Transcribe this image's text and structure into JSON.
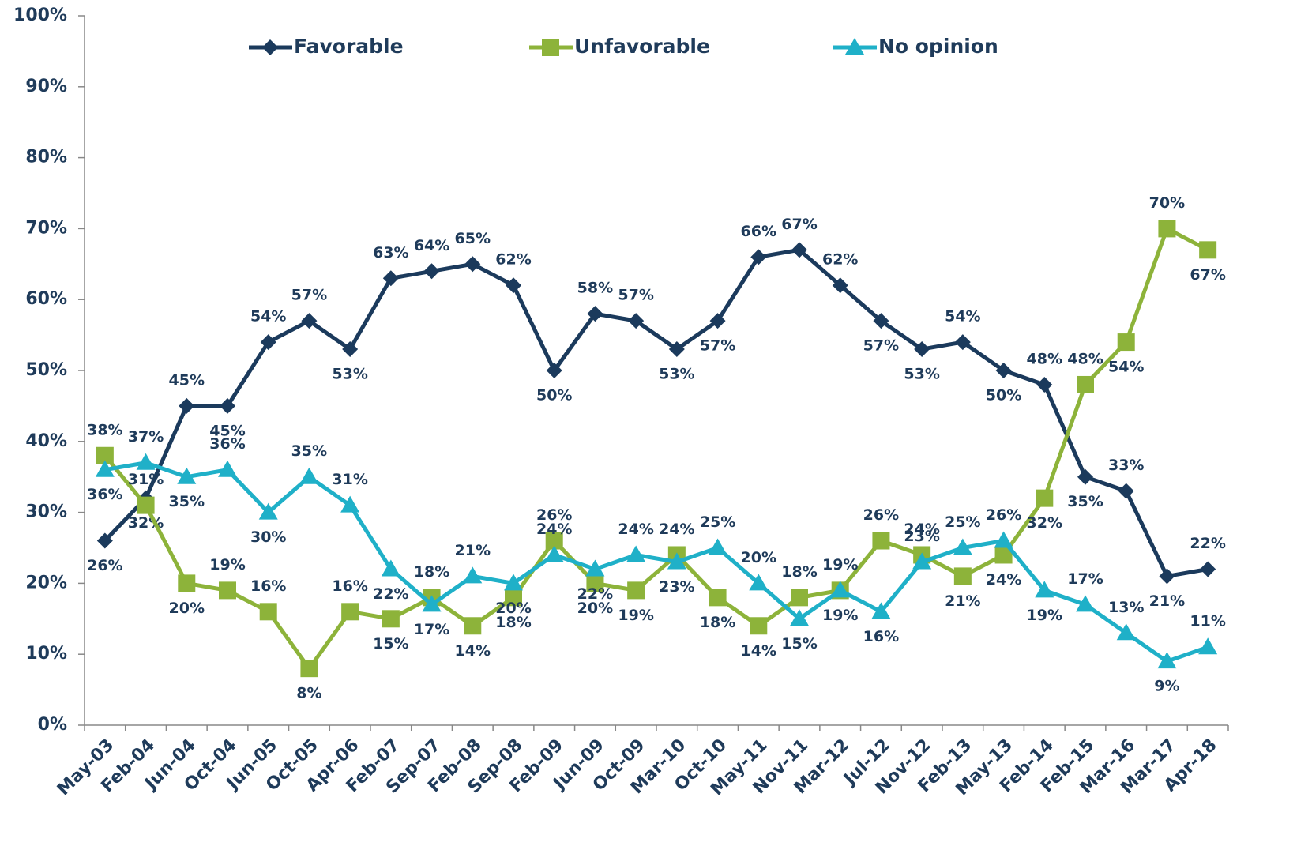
{
  "chart_data": {
    "type": "line",
    "categories": [
      "May-03",
      "Feb-04",
      "Jun-04",
      "Oct-04",
      "Jun-05",
      "Oct-05",
      "Apr-06",
      "Feb-07",
      "Sep-07",
      "Feb-08",
      "Sep-08",
      "Feb-09",
      "Jun-09",
      "Oct-09",
      "Mar-10",
      "Oct-10",
      "May-11",
      "Nov-11",
      "Mar-12",
      "Jul-12",
      "Nov-12",
      "Feb-13",
      "May-13",
      "Feb-14",
      "Feb-15",
      "Mar-16",
      "Mar-17",
      "Apr-18"
    ],
    "series": [
      {
        "name": "Favorable",
        "color": "#1b3a5c",
        "marker": "diamond",
        "values": [
          26,
          32,
          45,
          45,
          54,
          57,
          53,
          63,
          64,
          65,
          62,
          50,
          58,
          57,
          53,
          57,
          66,
          67,
          62,
          57,
          53,
          54,
          50,
          48,
          35,
          33,
          21,
          22
        ],
        "value_labels": [
          "26%",
          "32%",
          "45%",
          "45%",
          "54%",
          "57%",
          "53%",
          "63%",
          "64%",
          "65%",
          "62%",
          "50%",
          "58%",
          "57%",
          "53%",
          "57%",
          "66%",
          "67%",
          "62%",
          "57%",
          "53%",
          "54%",
          "50%",
          "48%",
          "35%",
          "33%",
          "21%",
          "22%"
        ]
      },
      {
        "name": "Unfavorable",
        "color": "#8db33a",
        "marker": "square",
        "values": [
          38,
          31,
          20,
          19,
          16,
          8,
          16,
          15,
          18,
          14,
          18,
          26,
          20,
          19,
          24,
          18,
          14,
          18,
          19,
          26,
          24,
          21,
          24,
          32,
          48,
          54,
          70,
          67
        ],
        "value_labels": [
          "38%",
          "31%",
          "20%",
          "19%",
          "16%",
          "8%",
          "16%",
          "15%",
          "18%",
          "14%",
          "18%",
          "26%",
          "20%",
          "19%",
          "24%",
          "18%",
          "14%",
          "18%",
          "19%",
          "26%",
          "24%",
          "21%",
          "24%",
          "32%",
          "48%",
          "54%",
          "70%",
          "67%"
        ]
      },
      {
        "name": "No opinion",
        "color": "#1fb0c8",
        "marker": "triangle",
        "values": [
          36,
          37,
          35,
          36,
          30,
          35,
          31,
          22,
          17,
          21,
          20,
          24,
          22,
          24,
          23,
          25,
          20,
          15,
          19,
          16,
          23,
          25,
          26,
          19,
          17,
          13,
          9,
          11
        ],
        "value_labels": [
          "36%",
          "37%",
          "35%",
          "36%",
          "30%",
          "35%",
          "31%",
          "22%",
          "17%",
          "21%",
          "20%",
          "24%",
          "22%",
          "24%",
          "23%",
          "25%",
          "20%",
          "15%",
          "19%",
          "16%",
          "23%",
          "25%",
          "26%",
          "19%",
          "17%",
          "13%",
          "9%",
          "11%"
        ]
      }
    ],
    "ylim": [
      0,
      100
    ],
    "yticks": [
      {
        "value": 0,
        "label": "0%"
      },
      {
        "value": 10,
        "label": "10%"
      },
      {
        "value": 20,
        "label": "20%"
      },
      {
        "value": 30,
        "label": "30%"
      },
      {
        "value": 40,
        "label": "40%"
      },
      {
        "value": 50,
        "label": "50%"
      },
      {
        "value": 60,
        "label": "60%"
      },
      {
        "value": 70,
        "label": "70%"
      },
      {
        "value": 80,
        "label": "80%"
      },
      {
        "value": 90,
        "label": "90%"
      },
      {
        "value": 100,
        "label": "100%"
      }
    ],
    "legend": "top",
    "grid": false
  }
}
